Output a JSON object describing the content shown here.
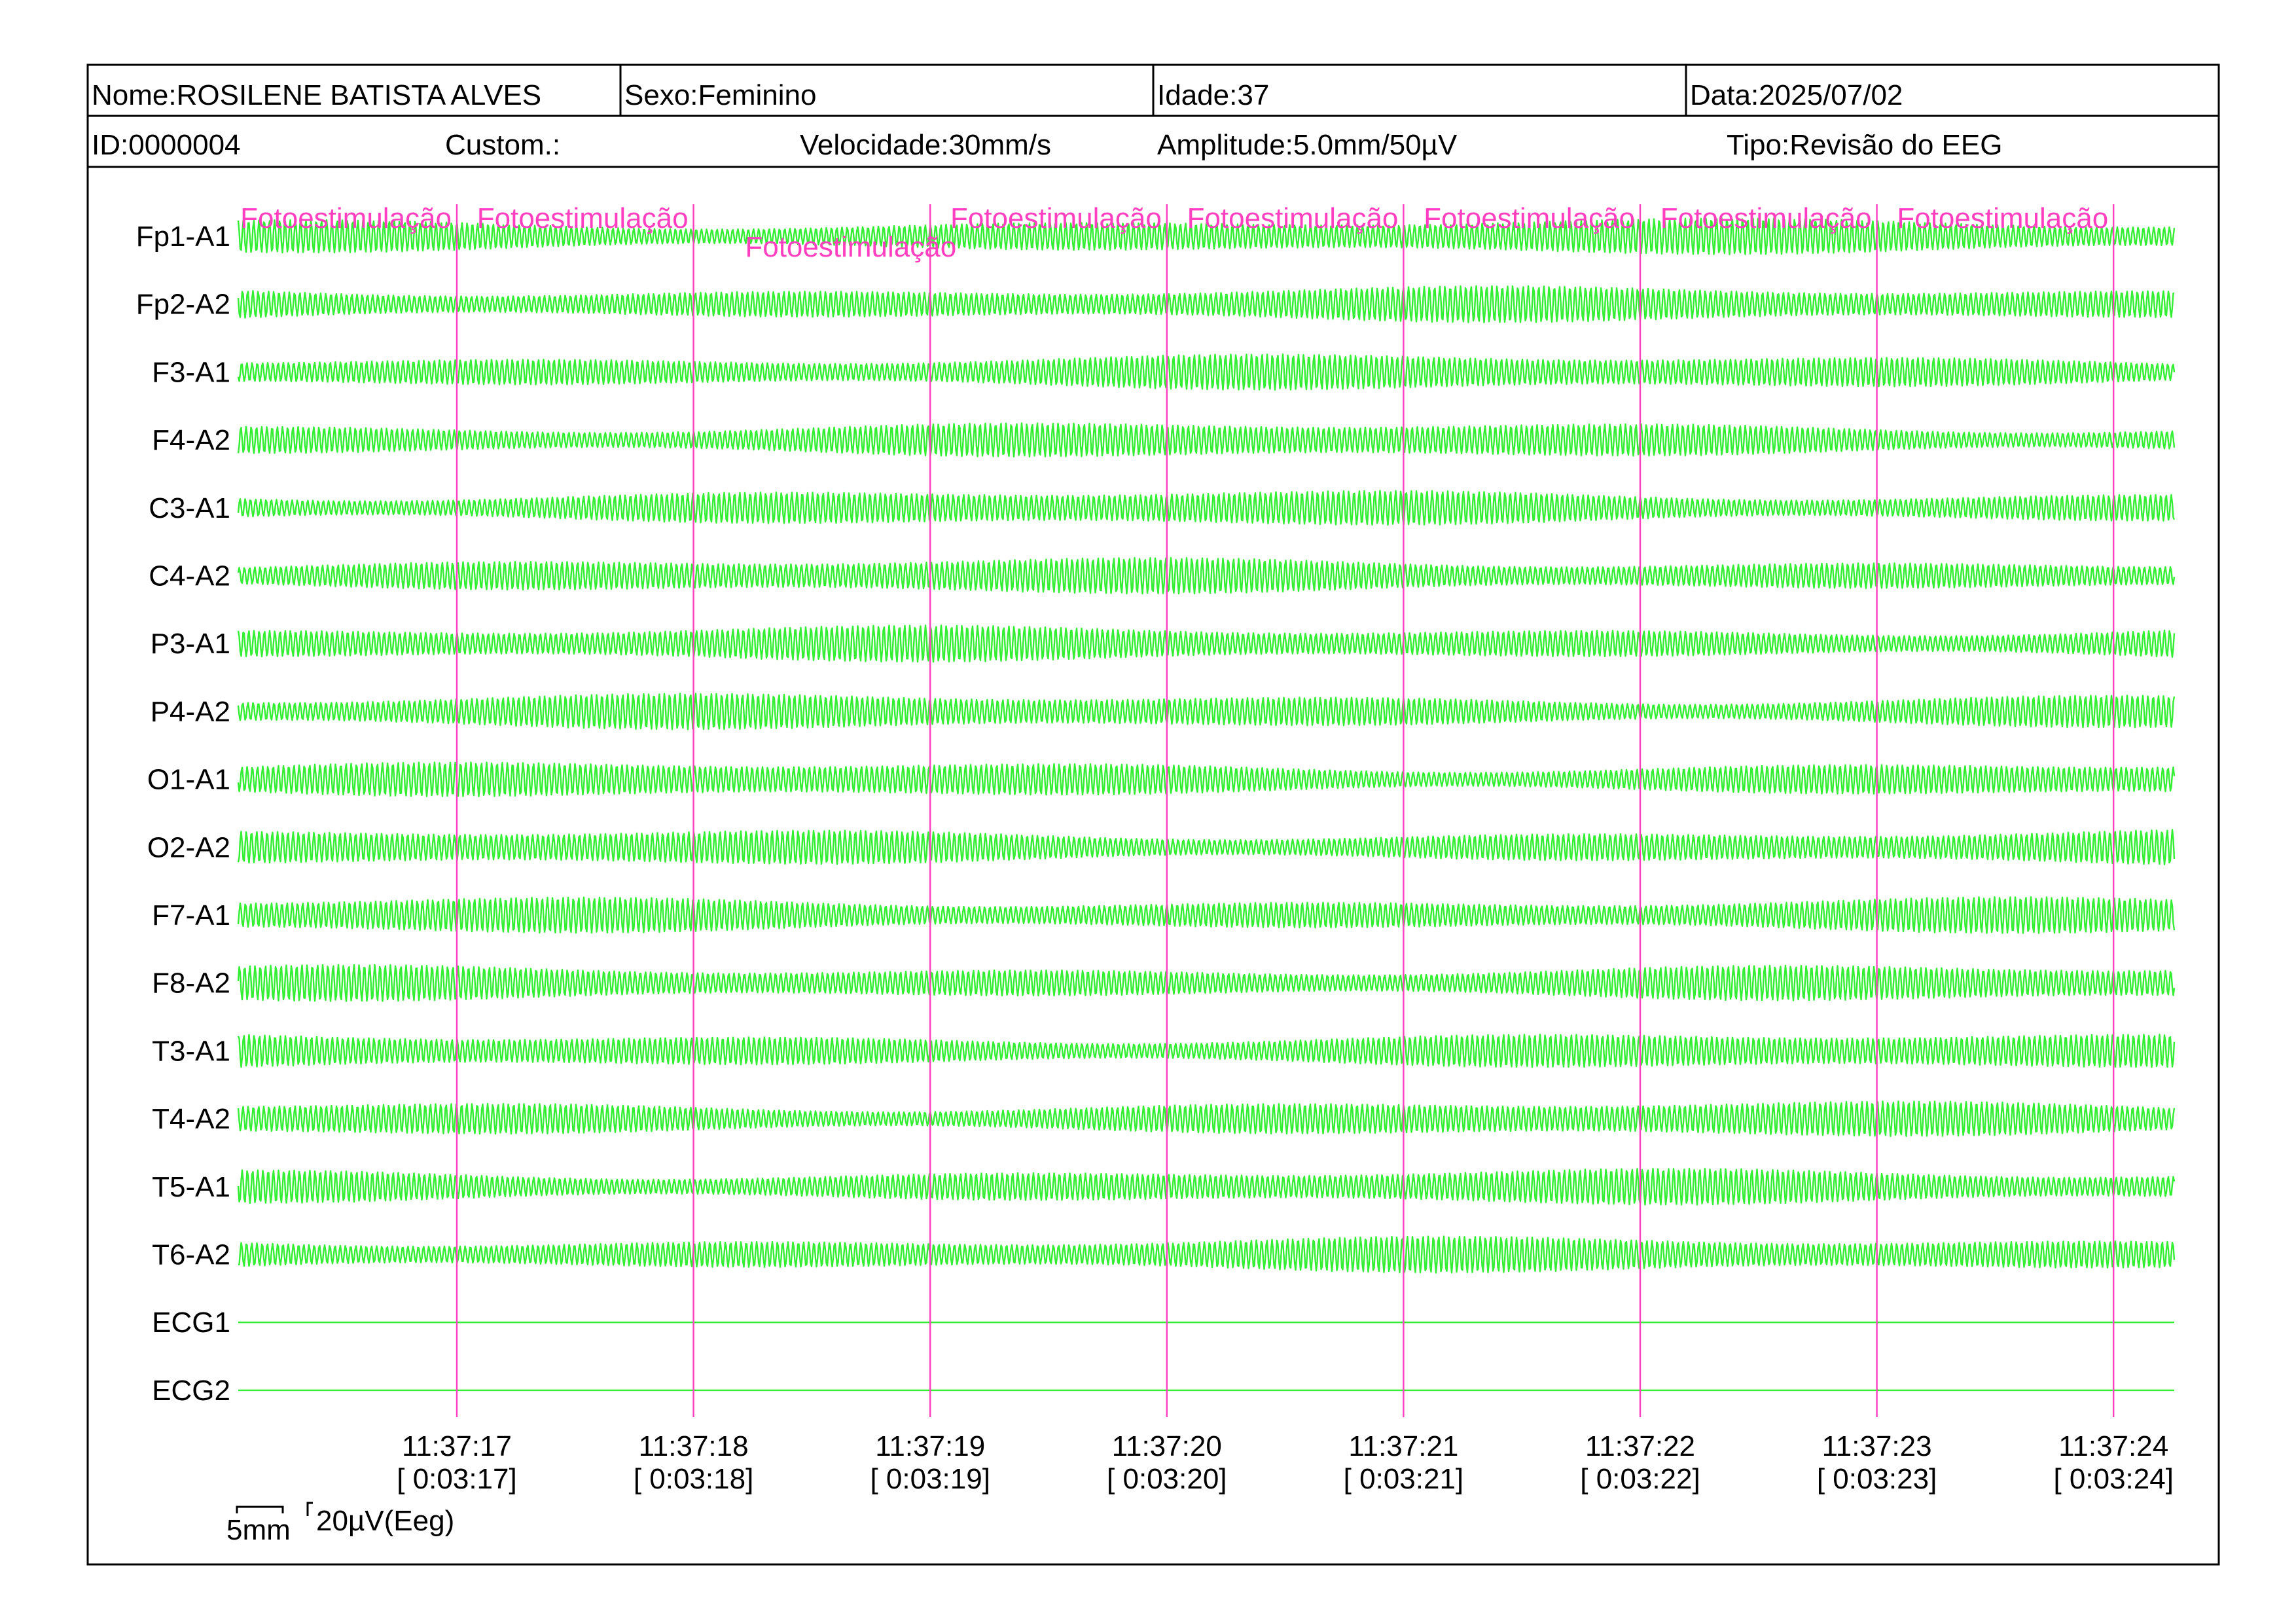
{
  "header": {
    "row1": [
      {
        "label": "Nome",
        "value": "ROSILENE BATISTA ALVES"
      },
      {
        "label": "Sexo",
        "value": "Feminino"
      },
      {
        "label": "Idade",
        "value": "37"
      },
      {
        "label": "Data",
        "value": "2025/07/02"
      }
    ],
    "row2": [
      {
        "label": "ID",
        "value": "0000004"
      },
      {
        "label": "Custom.",
        "value": ""
      },
      {
        "label": "Velocidade",
        "value": "30mm/s"
      },
      {
        "label": "Amplitude",
        "value": "5.0mm/50µV"
      },
      {
        "label": "Tipo",
        "value": "Revisão do EEG"
      }
    ]
  },
  "channels": [
    {
      "name": "Fp1-A1",
      "flat": false
    },
    {
      "name": "Fp2-A2",
      "flat": false
    },
    {
      "name": "F3-A1",
      "flat": false
    },
    {
      "name": "F4-A2",
      "flat": false
    },
    {
      "name": "C3-A1",
      "flat": false
    },
    {
      "name": "C4-A2",
      "flat": false
    },
    {
      "name": "P3-A1",
      "flat": false
    },
    {
      "name": "P4-A2",
      "flat": false
    },
    {
      "name": "O1-A1",
      "flat": false
    },
    {
      "name": "O2-A2",
      "flat": false
    },
    {
      "name": "F7-A1",
      "flat": false
    },
    {
      "name": "F8-A2",
      "flat": false
    },
    {
      "name": "T3-A1",
      "flat": false
    },
    {
      "name": "T4-A2",
      "flat": false
    },
    {
      "name": "T5-A1",
      "flat": false
    },
    {
      "name": "T6-A2",
      "flat": false
    },
    {
      "name": "ECG1",
      "flat": true
    },
    {
      "name": "ECG2",
      "flat": true
    }
  ],
  "markers": [
    {
      "label": "Fotoestimulação",
      "second": 0,
      "lowered": false
    },
    {
      "label": "Fotoestimulação",
      "second": 1,
      "lowered": false
    },
    {
      "label": "Fotoestimulação",
      "second": 2,
      "lowered": true
    },
    {
      "label": "Fotoestimulação",
      "second": 3,
      "lowered": false
    },
    {
      "label": "Fotoestimulação",
      "second": 4,
      "lowered": false
    },
    {
      "label": "Fotoestimulação",
      "second": 5,
      "lowered": false
    },
    {
      "label": "Fotoestimulação",
      "second": 6,
      "lowered": false
    },
    {
      "label": "Fotoestimulação",
      "second": 7,
      "lowered": false
    }
  ],
  "time_marks": [
    {
      "clock": "11:37:17",
      "elapsed": "[ 0:03:17]"
    },
    {
      "clock": "11:37:18",
      "elapsed": "[ 0:03:18]"
    },
    {
      "clock": "11:37:19",
      "elapsed": "[ 0:03:19]"
    },
    {
      "clock": "11:37:20",
      "elapsed": "[ 0:03:20]"
    },
    {
      "clock": "11:37:21",
      "elapsed": "[ 0:03:21]"
    },
    {
      "clock": "11:37:22",
      "elapsed": "[ 0:03:22]"
    },
    {
      "clock": "11:37:23",
      "elapsed": "[ 0:03:23]"
    },
    {
      "clock": "11:37:24",
      "elapsed": "[ 0:03:24]"
    }
  ],
  "scale": {
    "time_label": "5mm",
    "amplitude_label": "20µV(Eeg)"
  },
  "colors": {
    "trace": "#33ee33",
    "marker": "#ff3fbf",
    "border": "#000000"
  }
}
